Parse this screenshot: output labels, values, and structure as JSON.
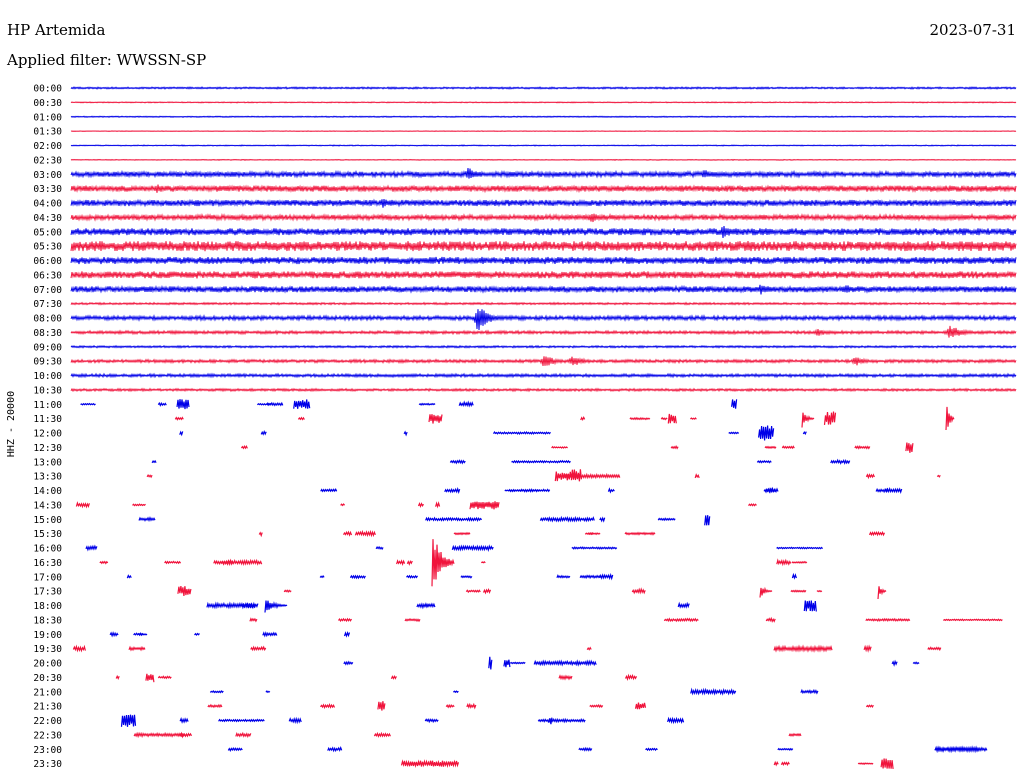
{
  "header": {
    "station": "HP Artemida",
    "date": "2023-07-31",
    "filter": "Applied filter: WWSSN-SP"
  },
  "chart_data": {
    "type": "line",
    "subtype": "helicorder",
    "ylabel": "HHZ - 20000",
    "x_range_minutes": [
      0,
      30
    ],
    "trace_colors": [
      "#0000e8",
      "#f0143c"
    ],
    "rows": [
      {
        "label": "00:00",
        "activity": 0.9
      },
      {
        "label": "00:30",
        "activity": 0.5
      },
      {
        "label": "01:00",
        "activity": 0.6
      },
      {
        "label": "01:30",
        "activity": 0.3
      },
      {
        "label": "02:00",
        "activity": 0.5
      },
      {
        "label": "02:30",
        "activity": 0.4
      },
      {
        "label": "03:00",
        "activity": 2.5,
        "events": [
          [
            0.42,
            7
          ],
          [
            0.67,
            5
          ]
        ]
      },
      {
        "label": "03:30",
        "activity": 3.0,
        "events": [
          [
            0.09,
            5
          ],
          [
            0.22,
            4
          ]
        ]
      },
      {
        "label": "04:00",
        "activity": 3.0,
        "events": [
          [
            0.33,
            5
          ]
        ]
      },
      {
        "label": "04:30",
        "activity": 2.5,
        "events": [
          [
            0.55,
            6
          ]
        ]
      },
      {
        "label": "05:00",
        "activity": 3.5,
        "events": [
          [
            0.69,
            7
          ],
          [
            0.34,
            4
          ]
        ]
      },
      {
        "label": "05:30",
        "activity": 5.0,
        "events": [
          [
            0.14,
            6
          ],
          [
            0.56,
            4
          ]
        ]
      },
      {
        "label": "06:00",
        "activity": 3.5
      },
      {
        "label": "06:30",
        "activity": 3.5
      },
      {
        "label": "07:00",
        "activity": 3.0,
        "events": [
          [
            0.73,
            6
          ],
          [
            0.82,
            5
          ]
        ]
      },
      {
        "label": "07:30",
        "activity": 1.0
      },
      {
        "label": "08:00",
        "activity": 2.0,
        "events": [
          [
            0.43,
            14
          ]
        ]
      },
      {
        "label": "08:30",
        "activity": 1.5,
        "events": [
          [
            0.93,
            8
          ],
          [
            0.79,
            4
          ]
        ]
      },
      {
        "label": "09:00",
        "activity": 1.0
      },
      {
        "label": "09:30",
        "activity": 1.5,
        "events": [
          [
            0.5,
            7
          ],
          [
            0.53,
            6
          ],
          [
            0.83,
            5
          ]
        ]
      },
      {
        "label": "10:00",
        "activity": 1.5
      },
      {
        "label": "10:30",
        "activity": 1.2
      },
      {
        "label": "11:00"
      },
      {
        "label": "11:30"
      },
      {
        "label": "12:00"
      },
      {
        "label": "12:30"
      },
      {
        "label": "13:00"
      },
      {
        "label": "13:30"
      },
      {
        "label": "14:00"
      },
      {
        "label": "14:30"
      },
      {
        "label": "15:00"
      },
      {
        "label": "15:30"
      },
      {
        "label": "16:00"
      },
      {
        "label": "16:30"
      },
      {
        "label": "17:00"
      },
      {
        "label": "17:30"
      },
      {
        "label": "18:00"
      },
      {
        "label": "18:30"
      },
      {
        "label": "19:00"
      },
      {
        "label": "19:30"
      },
      {
        "label": "20:00"
      },
      {
        "label": "20:30"
      },
      {
        "label": "21:00"
      },
      {
        "label": "21:30"
      },
      {
        "label": "22:00"
      },
      {
        "label": "22:30"
      },
      {
        "label": "23:00"
      },
      {
        "label": "23:30"
      }
    ]
  }
}
